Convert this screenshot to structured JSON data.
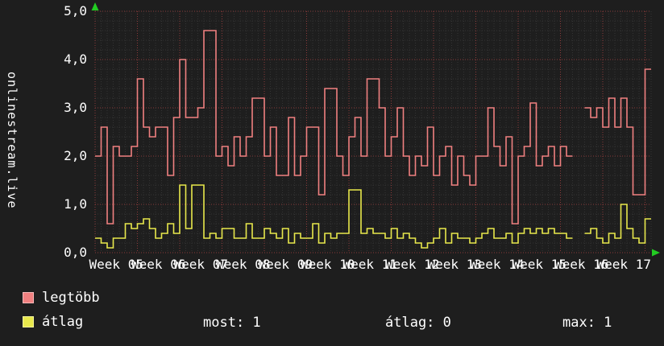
{
  "header": {
    "site_label": "onlinestream.live"
  },
  "chart_data": {
    "type": "line",
    "style": "step",
    "title": "",
    "xlabel": "",
    "ylabel": "onlinestream.live",
    "ylim": [
      0,
      5
    ],
    "grid": true,
    "legend_position": "bottom",
    "background_color": "#1e1e1e",
    "grid_major_color": "#8b3a3a",
    "grid_minor_color": "#343434",
    "arrow_color": "#22cc22",
    "text_color": "#ffffff",
    "y_tick_labels": [
      "0,0",
      "1,0",
      "2,0",
      "3,0",
      "4,0",
      "5,0"
    ],
    "x_tick_labels": [
      "Week 05",
      "Week 06",
      "Week 07",
      "Week 08",
      "Week 09",
      "Week 10",
      "Week 11",
      "Week 12",
      "Week 13",
      "Week 14",
      "Week 15",
      "Week 16",
      "Week 17"
    ],
    "series": [
      {
        "name": "legtöbb",
        "color": "#f08080",
        "values": [
          2.0,
          2.6,
          0.6,
          2.2,
          2.0,
          2.0,
          2.2,
          3.6,
          2.6,
          2.4,
          2.6,
          2.6,
          1.6,
          2.8,
          4.0,
          2.8,
          2.8,
          3.0,
          4.6,
          4.6,
          2.0,
          2.2,
          1.8,
          2.4,
          2.0,
          2.4,
          3.2,
          3.2,
          2.0,
          2.6,
          1.6,
          1.6,
          2.8,
          1.6,
          2.0,
          2.6,
          2.6,
          1.2,
          3.4,
          3.4,
          2.0,
          1.6,
          2.4,
          2.8,
          2.0,
          3.6,
          3.6,
          3.0,
          2.0,
          2.4,
          3.0,
          2.0,
          1.6,
          2.0,
          1.8,
          2.6,
          1.6,
          2.0,
          2.2,
          1.4,
          2.0,
          1.6,
          1.4,
          2.0,
          2.0,
          3.0,
          2.2,
          1.8,
          2.4,
          0.6,
          2.0,
          2.2,
          3.1,
          1.8,
          2.0,
          2.2,
          1.8,
          2.2,
          2.0,
          null,
          null,
          3.0,
          2.8,
          3.0,
          2.6,
          3.2,
          2.6,
          3.2,
          2.6,
          1.2,
          1.2,
          3.8
        ]
      },
      {
        "name": "átlag",
        "color": "#e8e84c",
        "values": [
          0.3,
          0.2,
          0.1,
          0.3,
          0.3,
          0.6,
          0.5,
          0.6,
          0.7,
          0.5,
          0.3,
          0.4,
          0.6,
          0.4,
          1.4,
          0.5,
          1.4,
          1.4,
          0.3,
          0.4,
          0.3,
          0.5,
          0.5,
          0.3,
          0.3,
          0.6,
          0.3,
          0.3,
          0.5,
          0.4,
          0.3,
          0.5,
          0.2,
          0.4,
          0.3,
          0.3,
          0.6,
          0.2,
          0.4,
          0.3,
          0.4,
          0.4,
          1.3,
          1.3,
          0.4,
          0.5,
          0.4,
          0.4,
          0.3,
          0.5,
          0.3,
          0.4,
          0.3,
          0.2,
          0.1,
          0.2,
          0.3,
          0.5,
          0.2,
          0.4,
          0.3,
          0.3,
          0.2,
          0.3,
          0.4,
          0.5,
          0.3,
          0.3,
          0.4,
          0.2,
          0.4,
          0.5,
          0.4,
          0.5,
          0.4,
          0.5,
          0.4,
          0.4,
          0.3,
          null,
          null,
          0.4,
          0.5,
          0.3,
          0.2,
          0.4,
          0.3,
          1.0,
          0.5,
          0.3,
          0.2,
          0.7
        ]
      }
    ]
  },
  "legend": {
    "items": [
      {
        "label": "legtöbb",
        "color": "#f08080"
      },
      {
        "label": "átlag",
        "color": "#e8e84c"
      }
    ],
    "stats": [
      "most: 1",
      "átlag: 0",
      "max: 1"
    ]
  }
}
